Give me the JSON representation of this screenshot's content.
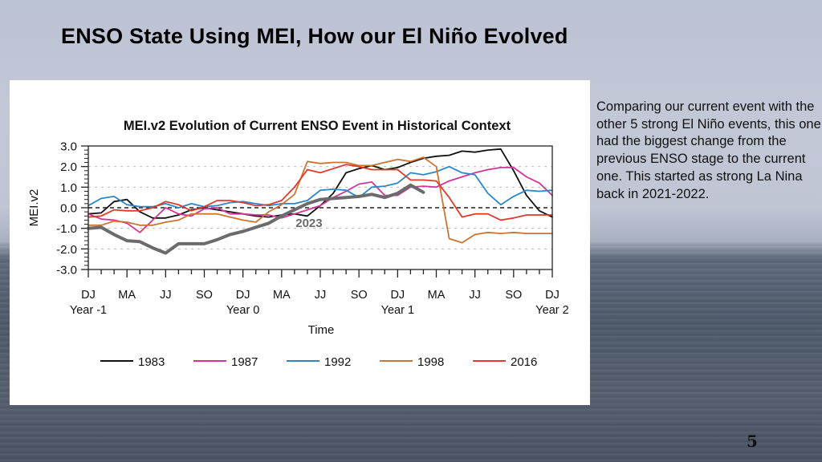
{
  "slide": {
    "title": "ENSO State  Using MEI, How our El Niño Evolved",
    "side_text": "Comparing our current event with the other 5 strong El Niño events, this one had the biggest change from the previous ENSO stage to the current one. This  started as strong La Nina back in 2021-2022.",
    "page_number": "5"
  },
  "chart_data": {
    "type": "line",
    "title": "MEI.v2 Evolution of Current ENSO Event in Historical Context",
    "xlabel": "Time",
    "ylabel": "MEI.v2",
    "ylim": [
      -3.0,
      3.0
    ],
    "yticks": [
      "3.0",
      "2.0",
      "1.0",
      "0.0",
      "-1.0",
      "-2.0",
      "-3.0"
    ],
    "ytick_values": [
      3,
      2,
      1,
      0,
      -1,
      -2,
      -3
    ],
    "grid": "dotted horizontal",
    "zero_line": "dashed",
    "x_count": 37,
    "xtick_labels": [
      "DJ",
      "MA",
      "JJ",
      "SO",
      "DJ",
      "MA",
      "JJ",
      "SO",
      "DJ",
      "MA",
      "JJ",
      "SO",
      "DJ"
    ],
    "year_labels": [
      {
        "label": "Year -1",
        "index": 0
      },
      {
        "label": "Year 0",
        "index": 12
      },
      {
        "label": "Year 1",
        "index": 24
      },
      {
        "label": "Year 2",
        "index": 36
      }
    ],
    "legend_position": "bottom",
    "series": [
      {
        "name": "1983",
        "color": "#111111",
        "values": [
          -0.3,
          -0.25,
          0.3,
          0.4,
          -0.2,
          -0.5,
          -0.5,
          -0.35,
          -0.1,
          0.0,
          -0.1,
          -0.2,
          -0.3,
          -0.4,
          -0.45,
          -0.35,
          -0.3,
          -0.4,
          0.1,
          0.7,
          1.7,
          1.9,
          2.05,
          1.85,
          1.95,
          2.2,
          2.4,
          2.5,
          2.55,
          2.75,
          2.7,
          2.8,
          2.85,
          1.8,
          0.6,
          -0.15,
          -0.45
        ]
      },
      {
        "name": "1987",
        "color": "#d2349a",
        "values": [
          -0.3,
          -0.55,
          -0.6,
          -0.75,
          -1.2,
          -0.6,
          0.0,
          -0.3,
          -0.4,
          -0.05,
          0.0,
          -0.3,
          -0.3,
          -0.35,
          -0.35,
          -0.5,
          -0.3,
          -0.1,
          0.1,
          0.5,
          0.8,
          1.15,
          1.25,
          0.6,
          0.6,
          1.0,
          1.05,
          1.0,
          1.3,
          1.5,
          1.7,
          1.85,
          1.95,
          1.95,
          1.5,
          1.2,
          0.6
        ]
      },
      {
        "name": "1992",
        "color": "#2a87c8",
        "values": [
          0.1,
          0.45,
          0.55,
          0.15,
          0.05,
          0.05,
          0.2,
          0.0,
          0.2,
          0.05,
          0.1,
          0.25,
          0.3,
          0.2,
          0.1,
          0.2,
          0.2,
          0.35,
          0.85,
          0.9,
          0.85,
          0.5,
          1.0,
          1.05,
          1.2,
          1.7,
          1.6,
          1.75,
          2.0,
          1.7,
          1.6,
          0.7,
          0.15,
          0.55,
          0.85,
          0.8,
          0.85
        ]
      },
      {
        "name": "1998",
        "color": "#cd7530",
        "values": [
          -0.85,
          -0.85,
          -0.65,
          -0.7,
          -0.85,
          -0.85,
          -0.7,
          -0.6,
          -0.3,
          -0.3,
          -0.3,
          -0.45,
          -0.6,
          -0.7,
          -0.2,
          0.15,
          0.65,
          2.25,
          2.15,
          2.2,
          2.2,
          2.05,
          2.05,
          2.2,
          2.35,
          2.25,
          2.45,
          2.0,
          -1.5,
          -1.7,
          -1.3,
          -1.2,
          -1.25,
          -1.2,
          -1.25,
          -1.25,
          -1.25
        ]
      },
      {
        "name": "2016",
        "color": "#e03a2a",
        "values": [
          -0.45,
          -0.4,
          -0.1,
          -0.15,
          -0.15,
          0.0,
          0.3,
          0.15,
          -0.15,
          0.05,
          0.35,
          0.35,
          0.25,
          0.1,
          0.15,
          0.35,
          1.0,
          1.85,
          1.7,
          1.9,
          2.1,
          2.0,
          1.85,
          1.85,
          1.85,
          1.35,
          1.35,
          1.3,
          0.5,
          -0.45,
          -0.3,
          -0.3,
          -0.6,
          -0.5,
          -0.35,
          -0.35,
          -0.35
        ]
      },
      {
        "name": "2023",
        "color": "#6b6b6b",
        "label": "2023",
        "label_index": 17,
        "values": [
          -1.0,
          -0.95,
          -1.3,
          -1.6,
          -1.65,
          -1.95,
          -2.2,
          -1.75,
          -1.75,
          -1.75,
          -1.55,
          -1.3,
          -1.15,
          -0.95,
          -0.75,
          -0.4,
          -0.1,
          0.2,
          0.4,
          0.45,
          0.5,
          0.55,
          0.65,
          0.5,
          0.7,
          1.1,
          0.75
        ]
      }
    ]
  }
}
